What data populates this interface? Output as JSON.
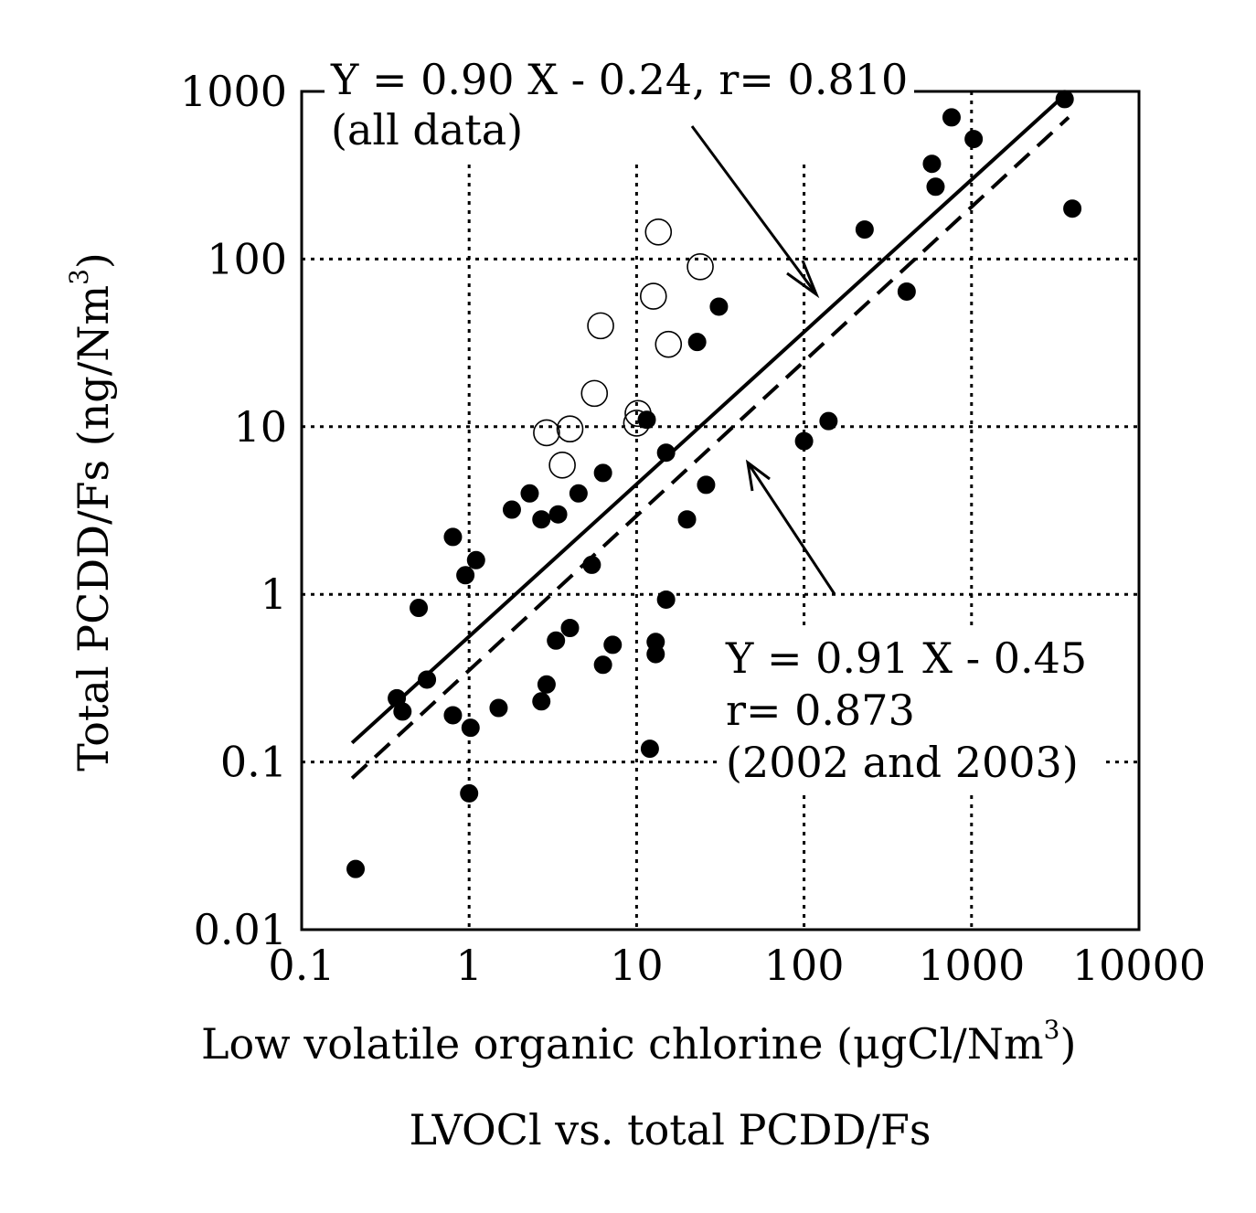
{
  "chart_data": {
    "type": "scatter",
    "caption": "LVOCl vs. total PCDD/Fs",
    "xlabel": "Low volatile organic chlorine (μgCl/Nm",
    "xlabel_sup": "3",
    "xlabel_close": ")",
    "ylabel": "Total PCDD/Fs (ng/Nm",
    "ylabel_sup": "3",
    "ylabel_close": ")",
    "x_scale": "log",
    "y_scale": "log",
    "xlim": [
      0.1,
      10000
    ],
    "ylim": [
      0.01,
      1000
    ],
    "x_ticks": [
      {
        "value": 0.1,
        "label": "0.1"
      },
      {
        "value": 1,
        "label": "1"
      },
      {
        "value": 10,
        "label": "10"
      },
      {
        "value": 100,
        "label": "100"
      },
      {
        "value": 1000,
        "label": "1000"
      },
      {
        "value": 10000,
        "label": "10000"
      }
    ],
    "y_ticks": [
      {
        "value": 0.01,
        "label": "0.01"
      },
      {
        "value": 0.1,
        "label": "0.1"
      },
      {
        "value": 1,
        "label": "1"
      },
      {
        "value": 10,
        "label": "10"
      },
      {
        "value": 100,
        "label": "100"
      },
      {
        "value": 1000,
        "label": "1000"
      }
    ],
    "grid": "dotted",
    "series": [
      {
        "marker": "filled-circle",
        "points": [
          [
            0.21,
            0.023
          ],
          [
            0.37,
            0.24
          ],
          [
            0.4,
            0.2
          ],
          [
            0.5,
            0.83
          ],
          [
            0.56,
            0.31
          ],
          [
            0.8,
            2.2
          ],
          [
            0.8,
            0.19
          ],
          [
            0.95,
            1.3
          ],
          [
            1.0,
            0.065
          ],
          [
            1.02,
            0.16
          ],
          [
            1.1,
            1.6
          ],
          [
            1.5,
            0.21
          ],
          [
            1.8,
            3.2
          ],
          [
            2.3,
            4.0
          ],
          [
            2.7,
            2.8
          ],
          [
            2.7,
            0.23
          ],
          [
            2.9,
            0.29
          ],
          [
            3.3,
            0.53
          ],
          [
            3.4,
            3.0
          ],
          [
            4.0,
            0.63
          ],
          [
            4.5,
            4.0
          ],
          [
            5.4,
            1.5
          ],
          [
            6.3,
            5.3
          ],
          [
            6.3,
            0.38
          ],
          [
            7.2,
            0.5
          ],
          [
            11.5,
            11.0
          ],
          [
            12.0,
            0.12
          ],
          [
            13.0,
            0.52
          ],
          [
            13.0,
            0.44
          ],
          [
            15.0,
            7.0
          ],
          [
            15.0,
            0.93
          ],
          [
            20.0,
            2.8
          ],
          [
            23.0,
            32.0
          ],
          [
            26.0,
            4.5
          ],
          [
            31.0,
            52.0
          ],
          [
            100.0,
            8.2
          ],
          [
            140.0,
            10.8
          ],
          [
            230.0,
            150.0
          ],
          [
            410.0,
            64.0
          ],
          [
            580.0,
            370.0
          ],
          [
            610.0,
            270.0
          ],
          [
            760.0,
            700.0
          ],
          [
            1030.0,
            520.0
          ],
          [
            3600.0,
            900.0
          ],
          [
            4000.0,
            200.0
          ]
        ]
      },
      {
        "marker": "open-circle",
        "points": [
          [
            2.9,
            9.2
          ],
          [
            3.6,
            5.9
          ],
          [
            4.0,
            9.7
          ],
          [
            5.6,
            15.8
          ],
          [
            6.1,
            40.0
          ],
          [
            10.0,
            10.5
          ],
          [
            10.2,
            12.0
          ],
          [
            12.6,
            60.0
          ],
          [
            13.5,
            145.0
          ],
          [
            15.5,
            31.0
          ],
          [
            24.0,
            90.0
          ]
        ]
      }
    ],
    "fit_lines": [
      {
        "style": "solid",
        "x": [
          0.2,
          3800
        ],
        "y": [
          0.13,
          1000
        ],
        "equation": "Y = 0.90 X - 0.24, r= 0.810",
        "note": "(all data)"
      },
      {
        "style": "dashed",
        "x": [
          0.2,
          3800
        ],
        "y": [
          0.08,
          700
        ],
        "equation": "Y = 0.91 X - 0.45",
        "r": "r= 0.873",
        "note": "(2002 and 2003)"
      }
    ]
  }
}
